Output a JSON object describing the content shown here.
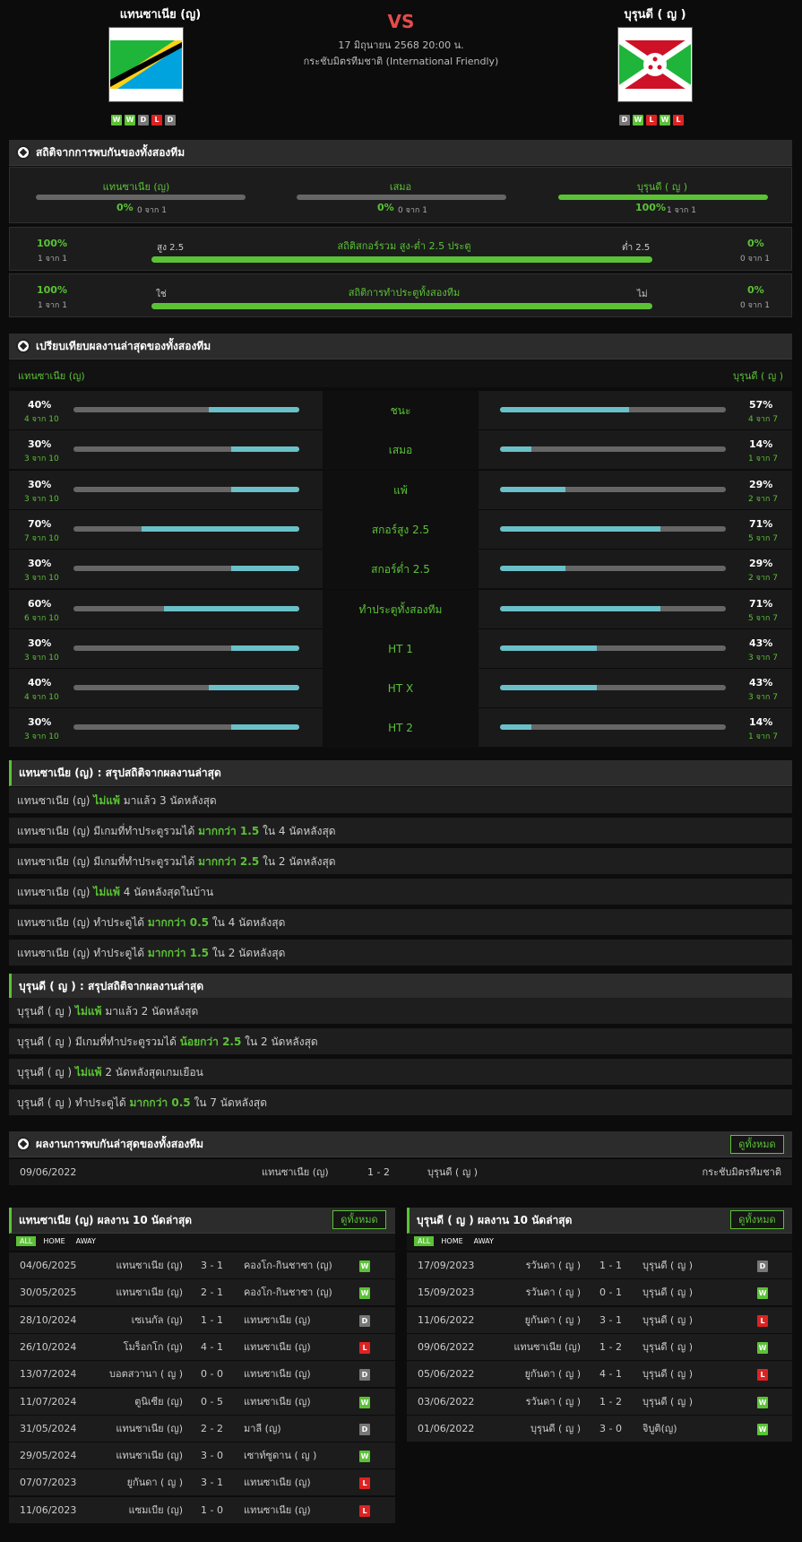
{
  "header": {
    "home_name": "แทนซาเนีย (ญ)",
    "away_name": "บุรุนดี ( ญ )",
    "vs": "VS",
    "date": "17 มิถุนายน 2568 20:00 น.",
    "competition": "กระชับมิตรทีมชาติ (International Friendly)",
    "home_form": [
      "W",
      "W",
      "D",
      "L",
      "D"
    ],
    "away_form": [
      "D",
      "W",
      "L",
      "W",
      "L"
    ]
  },
  "h2h_stats": {
    "title": "สถิติจากการพบกันของทั้งสองทีม",
    "cols": [
      {
        "name": "แทนซาเนีย (ญ)",
        "pct": "0%",
        "sub": "0 จาก 1",
        "fill": 0
      },
      {
        "name": "เสมอ",
        "pct": "0%",
        "sub": "0 จาก 1",
        "fill": 0
      },
      {
        "name": "บุรุนดี ( ญ )",
        "pct": "100%",
        "sub": "1 จาก 1",
        "fill": 1
      }
    ],
    "ou": {
      "title": "สถิติสกอร์รวม สูง-ต่ำ 2.5 ประตู",
      "left_label": "สูง 2.5",
      "right_label": "ต่ำ 2.5",
      "left_pct": "100%",
      "left_sub": "1 จาก 1",
      "right_pct": "0%",
      "right_sub": "0 จาก 1"
    },
    "btts": {
      "title": "สถิติการทำประตูทั้งสองทีม",
      "left_label": "ใช่",
      "right_label": "ไม่",
      "left_pct": "100%",
      "left_sub": "1 จาก 1",
      "right_pct": "0%",
      "right_sub": "0 จาก 1"
    }
  },
  "compare": {
    "title": "เปรียบเทียบผลงานล่าสุดของทั้งสองทีม",
    "home": "แทนซาเนีย (ญ)",
    "away": "บุรุนดี ( ญ )",
    "rows": [
      {
        "label": "ชนะ",
        "hp": "40%",
        "hs": "4 จาก 10",
        "hf": 0.4,
        "ap": "57%",
        "as": "4 จาก 7",
        "af": 0.57
      },
      {
        "label": "เสมอ",
        "hp": "30%",
        "hs": "3 จาก 10",
        "hf": 0.3,
        "ap": "14%",
        "as": "1 จาก 7",
        "af": 0.14
      },
      {
        "label": "แพ้",
        "hp": "30%",
        "hs": "3 จาก 10",
        "hf": 0.3,
        "ap": "29%",
        "as": "2 จาก 7",
        "af": 0.29
      },
      {
        "label": "สกอร์สูง 2.5",
        "hp": "70%",
        "hs": "7 จาก 10",
        "hf": 0.7,
        "ap": "71%",
        "as": "5 จาก 7",
        "af": 0.71
      },
      {
        "label": "สกอร์ต่ำ 2.5",
        "hp": "30%",
        "hs": "3 จาก 10",
        "hf": 0.3,
        "ap": "29%",
        "as": "2 จาก 7",
        "af": 0.29
      },
      {
        "label": "ทำประตูทั้งสองทีม",
        "hp": "60%",
        "hs": "6 จาก 10",
        "hf": 0.6,
        "ap": "71%",
        "as": "5 จาก 7",
        "af": 0.71
      },
      {
        "label": "HT 1",
        "hp": "30%",
        "hs": "3 จาก 10",
        "hf": 0.3,
        "ap": "43%",
        "as": "3 จาก 7",
        "af": 0.43
      },
      {
        "label": "HT X",
        "hp": "40%",
        "hs": "4 จาก 10",
        "hf": 0.4,
        "ap": "43%",
        "as": "3 จาก 7",
        "af": 0.43
      },
      {
        "label": "HT 2",
        "hp": "30%",
        "hs": "3 จาก 10",
        "hf": 0.3,
        "ap": "14%",
        "as": "1 จาก 7",
        "af": 0.14
      }
    ]
  },
  "home_summary": {
    "title": "แทนซาเนีย (ญ) : สรุปสถิติจากผลงานล่าสุด",
    "rows": [
      {
        "a": "แทนซาเนีย (ญ)",
        "b": "ไม่แพ้",
        "c": "มาแล้ว 3 นัดหลังสุด"
      },
      {
        "a": "แทนซาเนีย (ญ) มีเกมที่ทำประตูรวมได้",
        "b": "มากกว่า 1.5",
        "c": "ใน 4 นัดหลังสุด"
      },
      {
        "a": "แทนซาเนีย (ญ) มีเกมที่ทำประตูรวมได้",
        "b": "มากกว่า 2.5",
        "c": "ใน 2 นัดหลังสุด"
      },
      {
        "a": "แทนซาเนีย (ญ)",
        "b": "ไม่แพ้",
        "c": "4 นัดหลังสุดในบ้าน"
      },
      {
        "a": "แทนซาเนีย (ญ) ทำประตูได้",
        "b": "มากกว่า 0.5",
        "c": "ใน 4 นัดหลังสุด"
      },
      {
        "a": "แทนซาเนีย (ญ) ทำประตูได้",
        "b": "มากกว่า 1.5",
        "c": "ใน 2 นัดหลังสุด"
      }
    ]
  },
  "away_summary": {
    "title": "บุรุนดี ( ญ ) : สรุปสถิติจากผลงานล่าสุด",
    "rows": [
      {
        "a": "บุรุนดี ( ญ )",
        "b": "ไม่แพ้",
        "c": "มาแล้ว 2 นัดหลังสุด"
      },
      {
        "a": "บุรุนดี ( ญ ) มีเกมที่ทำประตูรวมได้",
        "b": "น้อยกว่า 2.5",
        "c": "ใน 2 นัดหลังสุด"
      },
      {
        "a": "บุรุนดี ( ญ )",
        "b": "ไม่แพ้",
        "c": "2 นัดหลังสุดเกมเยือน"
      },
      {
        "a": "บุรุนดี ( ญ ) ทำประตูได้",
        "b": "มากกว่า 0.5",
        "c": "ใน 7 นัดหลังสุด"
      }
    ]
  },
  "h2h_results": {
    "title": "ผลงานการพบกันล่าสุดของทั้งสองทีม",
    "view_all": "ดูทั้งหมด",
    "rows": [
      {
        "date": "09/06/2022",
        "home": "แทนซาเนีย (ญ)",
        "score": "1 - 2",
        "away": "บุรุนดี ( ญ )",
        "comp": "กระชับมิตรทีมชาติ"
      }
    ]
  },
  "home_last10": {
    "title": "แทนซาเนีย (ญ) ผลงาน 10 นัดล่าสุด",
    "view_all": "ดูทั้งหมด",
    "tabs": [
      "ALL",
      "HOME",
      "AWAY"
    ],
    "rows": [
      {
        "date": "04/06/2025",
        "home": "แทนซาเนีย (ญ)",
        "score": "3 - 1",
        "away": "คองโก-กินชาซา (ญ)",
        "res": "W"
      },
      {
        "date": "30/05/2025",
        "home": "แทนซาเนีย (ญ)",
        "score": "2 - 1",
        "away": "คองโก-กินชาซา (ญ)",
        "res": "W"
      },
      {
        "date": "28/10/2024",
        "home": "เซเนกัล (ญ)",
        "score": "1 - 1",
        "away": "แทนซาเนีย (ญ)",
        "res": "D"
      },
      {
        "date": "26/10/2024",
        "home": "โมร็อกโก (ญ)",
        "score": "4 - 1",
        "away": "แทนซาเนีย (ญ)",
        "res": "L"
      },
      {
        "date": "13/07/2024",
        "home": "บอตสวานา ( ญ )",
        "score": "0 - 0",
        "away": "แทนซาเนีย (ญ)",
        "res": "D"
      },
      {
        "date": "11/07/2024",
        "home": "ตูนิเซีย (ญ)",
        "score": "0 - 5",
        "away": "แทนซาเนีย (ญ)",
        "res": "W"
      },
      {
        "date": "31/05/2024",
        "home": "แทนซาเนีย (ญ)",
        "score": "2 - 2",
        "away": "มาลี (ญ)",
        "res": "D"
      },
      {
        "date": "29/05/2024",
        "home": "แทนซาเนีย (ญ)",
        "score": "3 - 0",
        "away": "เซาท์ซูดาน ( ญ )",
        "res": "W"
      },
      {
        "date": "07/07/2023",
        "home": "ยูกันดา ( ญ )",
        "score": "3 - 1",
        "away": "แทนซาเนีย (ญ)",
        "res": "L"
      },
      {
        "date": "11/06/2023",
        "home": "แซมเบีย (ญ)",
        "score": "1 - 0",
        "away": "แทนซาเนีย (ญ)",
        "res": "L"
      }
    ]
  },
  "away_last10": {
    "title": "บุรุนดี ( ญ ) ผลงาน 10 นัดล่าสุด",
    "view_all": "ดูทั้งหมด",
    "tabs": [
      "ALL",
      "HOME",
      "AWAY"
    ],
    "rows": [
      {
        "date": "17/09/2023",
        "home": "รวันดา ( ญ )",
        "score": "1 - 1",
        "away": "บุรุนดี ( ญ )",
        "res": "D"
      },
      {
        "date": "15/09/2023",
        "home": "รวันดา ( ญ )",
        "score": "0 - 1",
        "away": "บุรุนดี ( ญ )",
        "res": "W"
      },
      {
        "date": "11/06/2022",
        "home": "ยูกันดา ( ญ )",
        "score": "3 - 1",
        "away": "บุรุนดี ( ญ )",
        "res": "L"
      },
      {
        "date": "09/06/2022",
        "home": "แทนซาเนีย (ญ)",
        "score": "1 - 2",
        "away": "บุรุนดี ( ญ )",
        "res": "W"
      },
      {
        "date": "05/06/2022",
        "home": "ยูกันดา ( ญ )",
        "score": "4 - 1",
        "away": "บุรุนดี ( ญ )",
        "res": "L"
      },
      {
        "date": "03/06/2022",
        "home": "รวันดา ( ญ )",
        "score": "1 - 2",
        "away": "บุรุนดี ( ญ )",
        "res": "W"
      },
      {
        "date": "01/06/2022",
        "home": "บุรุนดี ( ญ )",
        "score": "3 - 0",
        "away": "จิบูติ(ญ)",
        "res": "W"
      }
    ]
  }
}
